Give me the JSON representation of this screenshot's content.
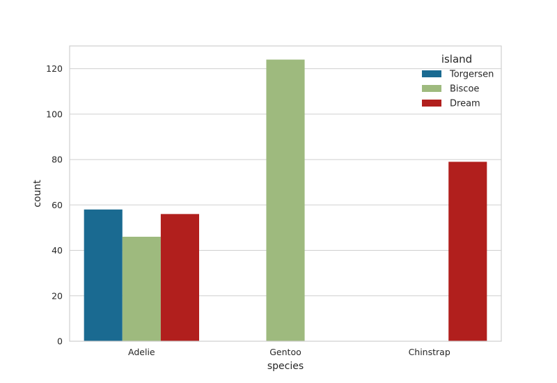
{
  "chart_data": {
    "type": "bar",
    "title": "",
    "xlabel": "species",
    "ylabel": "count",
    "categories": [
      "Adelie",
      "Gentoo",
      "Chinstrap"
    ],
    "series": [
      {
        "name": "Torgersen",
        "color": "#1a6a91",
        "values": [
          58,
          0,
          0
        ]
      },
      {
        "name": "Biscoe",
        "color": "#9eba7e",
        "values": [
          46,
          124,
          0
        ]
      },
      {
        "name": "Dream",
        "color": "#b11f1d",
        "values": [
          56,
          0,
          79
        ]
      }
    ],
    "ylim": [
      0,
      130
    ],
    "yticks": [
      0,
      20,
      40,
      60,
      80,
      100,
      120
    ],
    "grid": true,
    "legend": {
      "title": "island",
      "placement": "top-right"
    }
  }
}
